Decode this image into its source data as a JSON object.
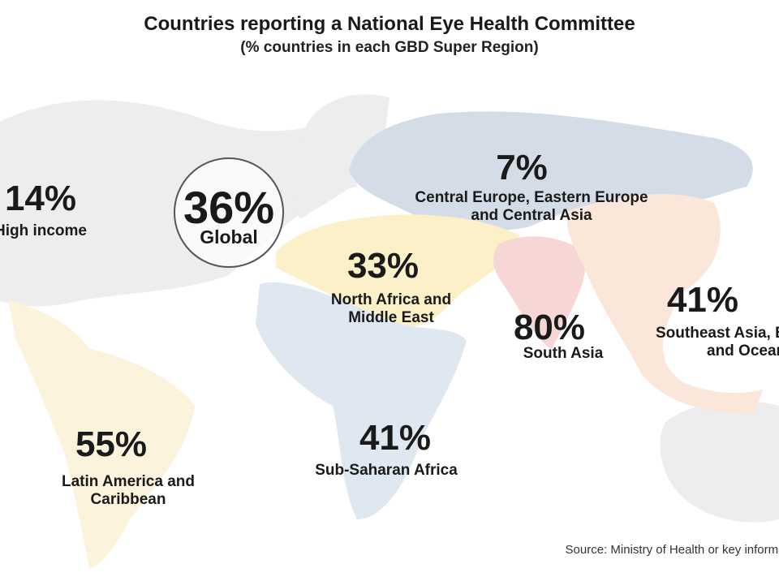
{
  "header": {
    "title": "Countries reporting a National Eye Health Committee",
    "subtitle": "(% countries in each GBD Super Region)"
  },
  "global": {
    "value": "36%",
    "name": "Global"
  },
  "regions": [
    {
      "value": "14%",
      "name_lines": [
        "High income"
      ]
    },
    {
      "value": "7%",
      "name_lines": [
        "Central Europe, Eastern Europe",
        "and Central Asia"
      ]
    },
    {
      "value": "33%",
      "name_lines": [
        "North Africa and",
        "Middle East"
      ]
    },
    {
      "value": "80%",
      "name_lines": [
        "South Asia"
      ]
    },
    {
      "value": "41%",
      "name_lines": [
        "Southeast Asia, East Asia",
        "and Oceania"
      ]
    },
    {
      "value": "41%",
      "name_lines": [
        "Sub-Saharan Africa"
      ]
    },
    {
      "value": "55%",
      "name_lines": [
        "Latin America and",
        "Caribbean"
      ]
    }
  ],
  "footer": {
    "source": "Source: Ministry of Health or key informant"
  }
}
